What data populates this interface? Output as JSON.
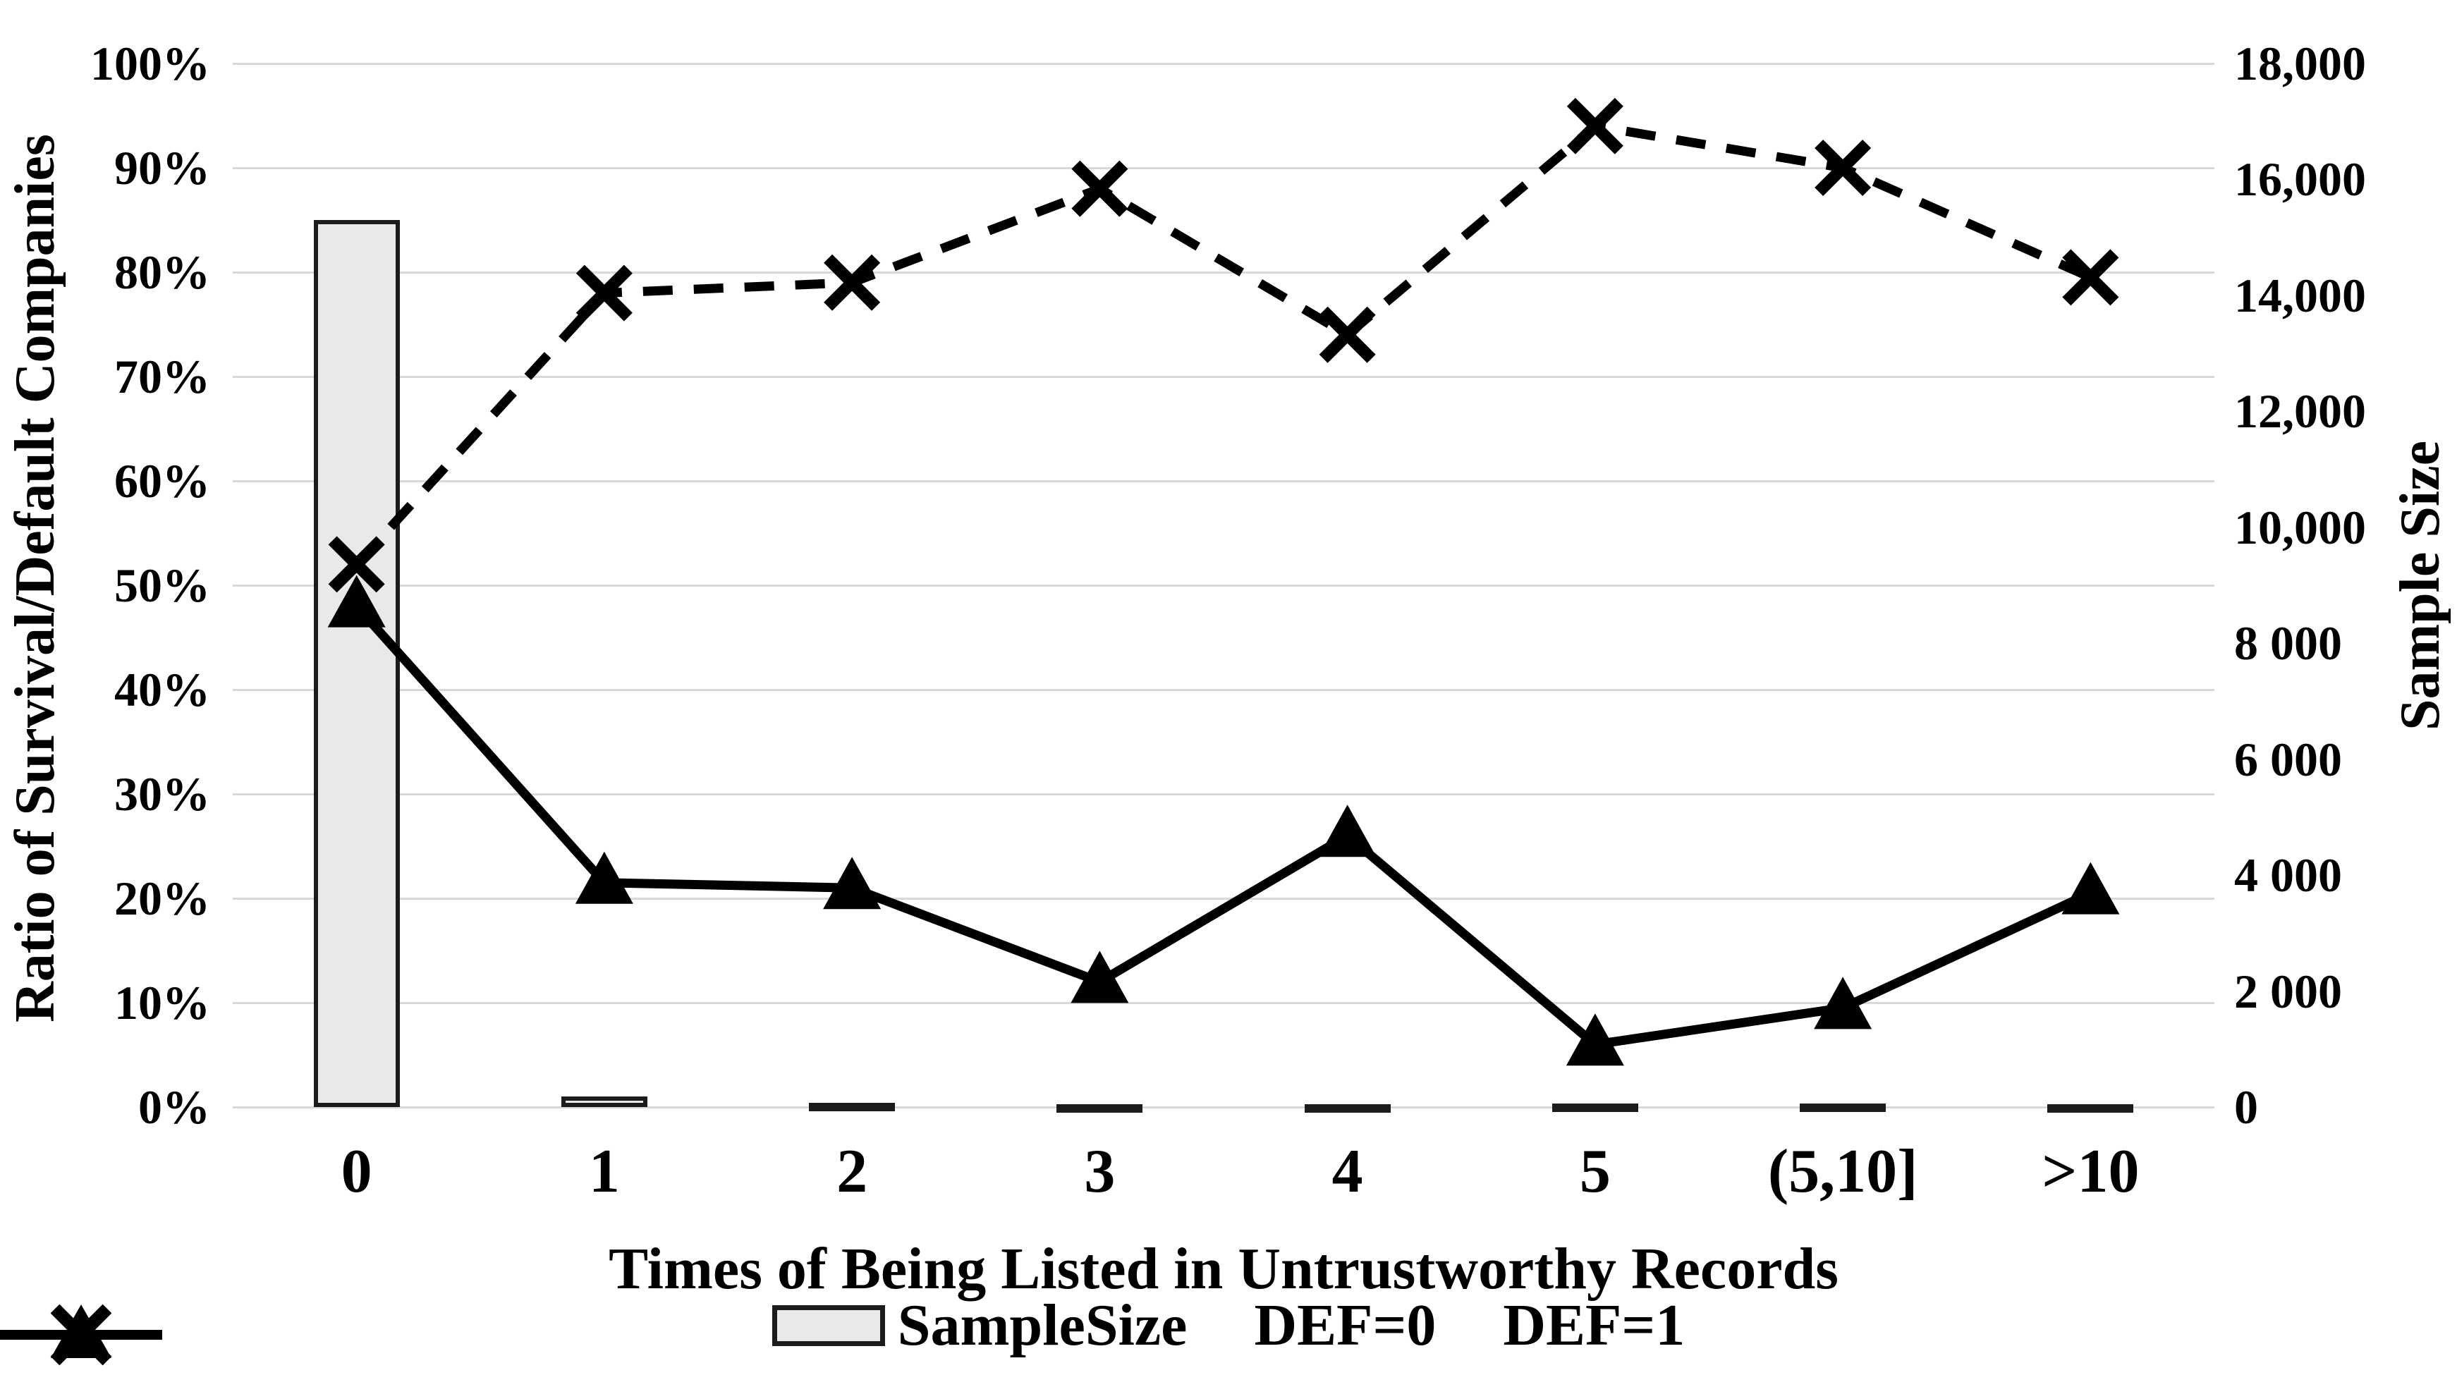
{
  "chart_data": {
    "type": "combo-bar-line",
    "title": "",
    "categories": [
      "0",
      "1",
      "2",
      "3",
      "4",
      "5",
      "(5,10]",
      ">10"
    ],
    "series": [
      {
        "name": "SampleSize",
        "type": "bar",
        "axis": "right",
        "values": [
          15300,
          180,
          70,
          50,
          50,
          60,
          60,
          50
        ]
      },
      {
        "name": "DEF=0",
        "type": "line",
        "line_style": "solid",
        "marker": "triangle",
        "axis": "left",
        "values_percent": [
          48,
          21.5,
          21,
          12,
          26,
          6,
          9.5,
          20.5
        ]
      },
      {
        "name": "DEF=1",
        "type": "line",
        "line_style": "dashed",
        "marker": "x",
        "axis": "left",
        "values_percent": [
          52,
          78,
          79,
          88,
          74,
          94,
          90,
          79.5
        ]
      }
    ],
    "left_axis": {
      "title": "Ratio of Survival/Default Companies",
      "min": 0,
      "max": 100,
      "ticks": [
        {
          "label": "100%",
          "value": 100
        },
        {
          "label": "90%",
          "value": 90
        },
        {
          "label": "80%",
          "value": 80
        },
        {
          "label": "70%",
          "value": 70
        },
        {
          "label": "60%",
          "value": 60
        },
        {
          "label": "50%",
          "value": 50
        },
        {
          "label": "40%",
          "value": 40
        },
        {
          "label": "30%",
          "value": 30
        },
        {
          "label": "20%",
          "value": 20
        },
        {
          "label": "10%",
          "value": 10
        },
        {
          "label": "0%",
          "value": 0
        }
      ]
    },
    "right_axis": {
      "title": "Sample Size",
      "min": 0,
      "max": 18000,
      "ticks": [
        {
          "label": "18,000",
          "value": 18000
        },
        {
          "label": "16,000",
          "value": 16000
        },
        {
          "label": "14,000",
          "value": 14000
        },
        {
          "label": "12,000",
          "value": 12000
        },
        {
          "label": "10,000",
          "value": 10000
        },
        {
          "label": "8 000",
          "value": 8000
        },
        {
          "label": "6 000",
          "value": 6000
        },
        {
          "label": "4 000",
          "value": 4000
        },
        {
          "label": "2 000",
          "value": 2000
        },
        {
          "label": "0",
          "value": 0
        }
      ]
    },
    "x_axis": {
      "title": "Times of Being Listed in Untrustworthy Records",
      "labels": [
        "0",
        "1",
        "2",
        "3",
        "4",
        "5",
        "(5,10]",
        ">10"
      ]
    },
    "legend": [
      {
        "label": "SampleSize",
        "swatch": "bar"
      },
      {
        "label": "DEF=0",
        "swatch": "solid-line-triangle"
      },
      {
        "label": "DEF=1",
        "swatch": "dashed-line-x"
      }
    ],
    "layout_hints": {
      "grid": "horizontal-only",
      "legend_position": "bottom-center",
      "background": "#ffffff"
    },
    "colors": {
      "bar_fill": "#e9e9e9",
      "bar_border": "#1c1c1c",
      "line": "#000000",
      "grid": "#d9d9d9",
      "text": "#000000"
    }
  }
}
